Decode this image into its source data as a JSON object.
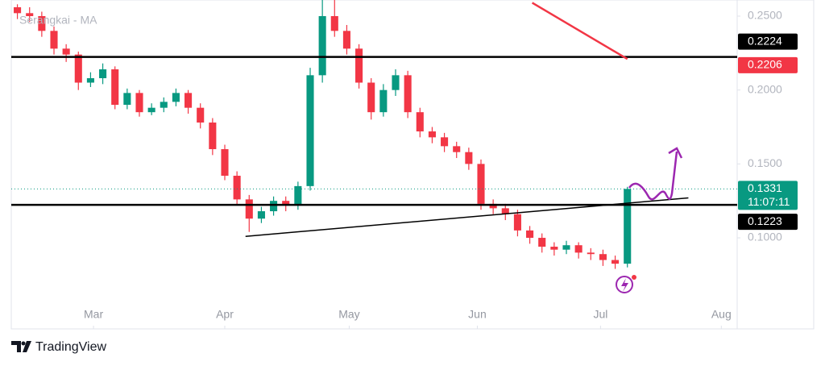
{
  "chart_data": {
    "type": "candlestick",
    "title": "Serangkai - MA",
    "up_color": "#089981",
    "down_color": "#f23645",
    "open": [
      0.256,
      0.252,
      0.25,
      0.24,
      0.228,
      0.224,
      0.205,
      0.208,
      0.214,
      0.19,
      0.198,
      0.185,
      0.188,
      0.192,
      0.198,
      0.188,
      0.178,
      0.16,
      0.142,
      0.126,
      0.113,
      0.118,
      0.125,
      0.122,
      0.135,
      0.21,
      0.25,
      0.24,
      0.228,
      0.205,
      0.185,
      0.2,
      0.21,
      0.185,
      0.172,
      0.168,
      0.162,
      0.158,
      0.15,
      0.123,
      0.12,
      0.116,
      0.105,
      0.1,
      0.094,
      0.092,
      0.095,
      0.09,
      0.089,
      0.085,
      0.0825
    ],
    "high": [
      0.258,
      0.256,
      0.253,
      0.243,
      0.231,
      0.226,
      0.212,
      0.218,
      0.216,
      0.201,
      0.2,
      0.191,
      0.195,
      0.201,
      0.2,
      0.191,
      0.181,
      0.163,
      0.145,
      0.129,
      0.121,
      0.128,
      0.128,
      0.138,
      0.215,
      0.262,
      0.262,
      0.244,
      0.231,
      0.208,
      0.204,
      0.214,
      0.213,
      0.188,
      0.175,
      0.171,
      0.165,
      0.161,
      0.153,
      0.126,
      0.123,
      0.119,
      0.108,
      0.103,
      0.097,
      0.098,
      0.097,
      0.093,
      0.092,
      0.088,
      0.1345
    ],
    "low": [
      0.248,
      0.246,
      0.236,
      0.224,
      0.219,
      0.2,
      0.202,
      0.204,
      0.187,
      0.187,
      0.182,
      0.183,
      0.185,
      0.189,
      0.184,
      0.174,
      0.156,
      0.139,
      0.122,
      0.104,
      0.11,
      0.115,
      0.118,
      0.119,
      0.132,
      0.205,
      0.236,
      0.224,
      0.201,
      0.18,
      0.182,
      0.196,
      0.181,
      0.168,
      0.164,
      0.158,
      0.154,
      0.146,
      0.119,
      0.116,
      0.112,
      0.101,
      0.096,
      0.09,
      0.088,
      0.089,
      0.086,
      0.085,
      0.081,
      0.079,
      0.08
    ],
    "close": [
      0.252,
      0.25,
      0.24,
      0.228,
      0.224,
      0.205,
      0.208,
      0.214,
      0.19,
      0.198,
      0.185,
      0.188,
      0.192,
      0.198,
      0.188,
      0.178,
      0.16,
      0.142,
      0.126,
      0.113,
      0.118,
      0.125,
      0.122,
      0.135,
      0.21,
      0.25,
      0.24,
      0.228,
      0.205,
      0.185,
      0.2,
      0.21,
      0.185,
      0.172,
      0.168,
      0.162,
      0.158,
      0.15,
      0.123,
      0.12,
      0.116,
      0.105,
      0.1,
      0.094,
      0.092,
      0.095,
      0.09,
      0.089,
      0.085,
      0.0825,
      0.1331
    ],
    "xlim": [
      -0.5,
      59
    ],
    "xticks": [
      {
        "value": 6.24,
        "label": "Mar"
      },
      {
        "value": 17.0,
        "label": "Apr"
      },
      {
        "value": 27.2,
        "label": "May"
      },
      {
        "value": 37.7,
        "label": "Jun"
      },
      {
        "value": 47.8,
        "label": "Jul"
      },
      {
        "value": 57.7,
        "label": "Aug"
      }
    ],
    "ylim": [
      0.0384,
      0.2609
    ],
    "yticks": [
      {
        "value": 0.1,
        "label": "0.1000"
      },
      {
        "value": 0.15,
        "label": "0.1500"
      },
      {
        "value": 0.2,
        "label": "0.2000"
      },
      {
        "value": 0.25,
        "label": "0.2500"
      }
    ],
    "levels": [
      {
        "value": 0.2224,
        "color": "#000000"
      },
      {
        "value": 0.1223,
        "color": "#000000"
      }
    ],
    "red_price": {
      "value": 0.2206,
      "color": "#f23645"
    },
    "last_price": {
      "value": 0.1331,
      "countdown": "11:07:11",
      "color": "#089981"
    },
    "trendlines": [
      {
        "x": [
          18.7,
          55.0
        ],
        "y": [
          0.101,
          0.127
        ],
        "color": "#000000"
      },
      {
        "x": [
          42.2,
          50.0
        ],
        "y": [
          0.259,
          0.221
        ],
        "color": "#f23645"
      }
    ]
  },
  "footer": {
    "brand": "TradingView"
  }
}
